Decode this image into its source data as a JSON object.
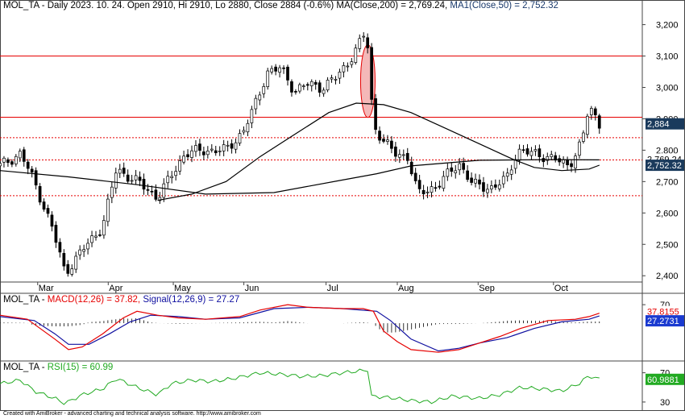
{
  "header": {
    "main": "MOL_TA - Daily 2023. 10. 24. Open 2910, Hi 2910, Lo 2880, Close 2884 (-0.6%)",
    "ma200_label": "MA(Close,200) = 2,769.24,",
    "ma50_label": "MA1(Close,50) = 2,752.32",
    "macd_prefix": "MOL_TA - ",
    "macd_label": "MACD(12,26) = 37.82,",
    "signal_label": "Signal(12,26,9) = 27.27",
    "rsi_prefix": "MOL_TA - ",
    "rsi_label": "RSI(15) = 60.99"
  },
  "footer": "Created with AmiBroker - advanced charting and technical analysis software. http://www.amibroker.com",
  "colors": {
    "up": "#ffffff",
    "down": "#000000",
    "red": "#e60000",
    "blue": "#1010a0",
    "green": "#22aa22",
    "ma": "#000000",
    "highlight": "#f4b8b8",
    "badge": "#1a3a5c"
  },
  "chart_data": [
    {
      "type": "candlestick",
      "ylim": [
        2380,
        3240
      ],
      "y_ticks": [
        "2,400",
        "2,500",
        "2,600",
        "2,700",
        "2,800",
        "2,900",
        "3,000",
        "3,100",
        "3,200"
      ],
      "y_tick_values": [
        2400,
        2500,
        2600,
        2700,
        2800,
        2900,
        3000,
        3100,
        3200
      ],
      "x_months": [
        "Mar",
        "Apr",
        "May",
        "Jun",
        "Jul",
        "Aug",
        "Sep",
        "Oct"
      ],
      "x_month_positions": [
        0.055,
        0.158,
        0.253,
        0.356,
        0.476,
        0.58,
        0.698,
        0.808
      ],
      "close_anchors": [
        [
          0,
          2750
        ],
        [
          0.03,
          2790
        ],
        [
          0.05,
          2700
        ],
        [
          0.075,
          2560
        ],
        [
          0.095,
          2410
        ],
        [
          0.12,
          2480
        ],
        [
          0.15,
          2560
        ],
        [
          0.17,
          2740
        ],
        [
          0.2,
          2700
        ],
        [
          0.23,
          2650
        ],
        [
          0.245,
          2700
        ],
        [
          0.27,
          2790
        ],
        [
          0.3,
          2800
        ],
        [
          0.33,
          2800
        ],
        [
          0.355,
          2860
        ],
        [
          0.37,
          2930
        ],
        [
          0.39,
          3050
        ],
        [
          0.41,
          3060
        ],
        [
          0.43,
          2990
        ],
        [
          0.45,
          3010
        ],
        [
          0.47,
          3000
        ],
        [
          0.49,
          3030
        ],
        [
          0.505,
          3070
        ],
        [
          0.525,
          3140
        ],
        [
          0.535,
          3180
        ],
        [
          0.545,
          2880
        ],
        [
          0.56,
          2830
        ],
        [
          0.575,
          2790
        ],
        [
          0.595,
          2780
        ],
        [
          0.61,
          2660
        ],
        [
          0.64,
          2690
        ],
        [
          0.67,
          2760
        ],
        [
          0.69,
          2690
        ],
        [
          0.72,
          2680
        ],
        [
          0.74,
          2710
        ],
        [
          0.755,
          2800
        ],
        [
          0.775,
          2790
        ],
        [
          0.8,
          2780
        ],
        [
          0.83,
          2750
        ],
        [
          0.85,
          2830
        ],
        [
          0.86,
          2940
        ],
        [
          0.875,
          2884
        ]
      ],
      "ma200": [
        [
          0,
          2735
        ],
        [
          0.1,
          2715
        ],
        [
          0.2,
          2690
        ],
        [
          0.3,
          2660
        ],
        [
          0.4,
          2665
        ],
        [
          0.45,
          2685
        ],
        [
          0.5,
          2705
        ],
        [
          0.55,
          2725
        ],
        [
          0.6,
          2750
        ],
        [
          0.7,
          2768
        ],
        [
          0.8,
          2770
        ],
        [
          0.875,
          2769.24
        ]
      ],
      "ma50": [
        [
          0.23,
          2640
        ],
        [
          0.28,
          2660
        ],
        [
          0.33,
          2700
        ],
        [
          0.38,
          2780
        ],
        [
          0.43,
          2850
        ],
        [
          0.48,
          2920
        ],
        [
          0.52,
          2950
        ],
        [
          0.56,
          2945
        ],
        [
          0.6,
          2920
        ],
        [
          0.65,
          2870
        ],
        [
          0.7,
          2820
        ],
        [
          0.75,
          2770
        ],
        [
          0.78,
          2745
        ],
        [
          0.82,
          2735
        ],
        [
          0.86,
          2740
        ],
        [
          0.875,
          2752.32
        ]
      ],
      "levels_solid": [
        3100,
        2905
      ],
      "levels_dashed": [
        2840,
        2769,
        2655
      ],
      "highlight_ellipse_center": [
        0.537,
        3020
      ],
      "last_price_badge": "2,884",
      "ma200_badge": "2,769.24",
      "ma50_badge": "2,752.32"
    },
    {
      "type": "line",
      "name": "MACD",
      "ylim": [
        -140,
        110
      ],
      "y_ticks": [
        "70"
      ],
      "y_tick_values": [
        70
      ],
      "macd": [
        [
          0,
          30
        ],
        [
          0.04,
          15
        ],
        [
          0.08,
          -60
        ],
        [
          0.1,
          -100
        ],
        [
          0.12,
          -90
        ],
        [
          0.15,
          -40
        ],
        [
          0.18,
          20
        ],
        [
          0.2,
          45
        ],
        [
          0.23,
          30
        ],
        [
          0.26,
          20
        ],
        [
          0.3,
          15
        ],
        [
          0.35,
          25
        ],
        [
          0.38,
          50
        ],
        [
          0.42,
          70
        ],
        [
          0.45,
          60
        ],
        [
          0.5,
          55
        ],
        [
          0.53,
          55
        ],
        [
          0.545,
          45
        ],
        [
          0.56,
          -30
        ],
        [
          0.58,
          -70
        ],
        [
          0.6,
          -100
        ],
        [
          0.64,
          -110
        ],
        [
          0.67,
          -100
        ],
        [
          0.7,
          -75
        ],
        [
          0.73,
          -50
        ],
        [
          0.76,
          -20
        ],
        [
          0.8,
          10
        ],
        [
          0.84,
          15
        ],
        [
          0.86,
          25
        ],
        [
          0.875,
          37.82
        ]
      ],
      "signal": [
        [
          0,
          25
        ],
        [
          0.05,
          10
        ],
        [
          0.08,
          -40
        ],
        [
          0.1,
          -80
        ],
        [
          0.13,
          -80
        ],
        [
          0.16,
          -40
        ],
        [
          0.19,
          5
        ],
        [
          0.22,
          30
        ],
        [
          0.26,
          25
        ],
        [
          0.3,
          15
        ],
        [
          0.35,
          20
        ],
        [
          0.4,
          55
        ],
        [
          0.45,
          60
        ],
        [
          0.5,
          55
        ],
        [
          0.55,
          45
        ],
        [
          0.57,
          10
        ],
        [
          0.6,
          -60
        ],
        [
          0.64,
          -105
        ],
        [
          0.67,
          -95
        ],
        [
          0.7,
          -75
        ],
        [
          0.74,
          -55
        ],
        [
          0.78,
          -20
        ],
        [
          0.82,
          5
        ],
        [
          0.86,
          15
        ],
        [
          0.875,
          27.27
        ]
      ],
      "macd_badge": "37.8155",
      "signal_badge": "27.2731"
    },
    {
      "type": "line",
      "name": "RSI",
      "ylim": [
        20,
        85
      ],
      "y_ticks": [
        "70",
        "30"
      ],
      "y_tick_values": [
        70,
        30
      ],
      "rsi": [
        [
          0,
          55
        ],
        [
          0.03,
          60
        ],
        [
          0.05,
          45
        ],
        [
          0.08,
          35
        ],
        [
          0.095,
          28
        ],
        [
          0.12,
          40
        ],
        [
          0.15,
          48
        ],
        [
          0.17,
          62
        ],
        [
          0.2,
          50
        ],
        [
          0.23,
          40
        ],
        [
          0.25,
          55
        ],
        [
          0.28,
          60
        ],
        [
          0.31,
          58
        ],
        [
          0.34,
          62
        ],
        [
          0.36,
          66
        ],
        [
          0.38,
          70
        ],
        [
          0.41,
          68
        ],
        [
          0.44,
          65
        ],
        [
          0.47,
          66
        ],
        [
          0.5,
          70
        ],
        [
          0.53,
          73
        ],
        [
          0.537,
          74
        ],
        [
          0.54,
          38
        ],
        [
          0.57,
          36
        ],
        [
          0.6,
          32
        ],
        [
          0.63,
          30
        ],
        [
          0.66,
          38
        ],
        [
          0.7,
          35
        ],
        [
          0.73,
          40
        ],
        [
          0.76,
          50
        ],
        [
          0.79,
          48
        ],
        [
          0.82,
          45
        ],
        [
          0.845,
          55
        ],
        [
          0.86,
          66
        ],
        [
          0.875,
          60.99
        ]
      ],
      "rsi_badge": "60.9881"
    }
  ]
}
